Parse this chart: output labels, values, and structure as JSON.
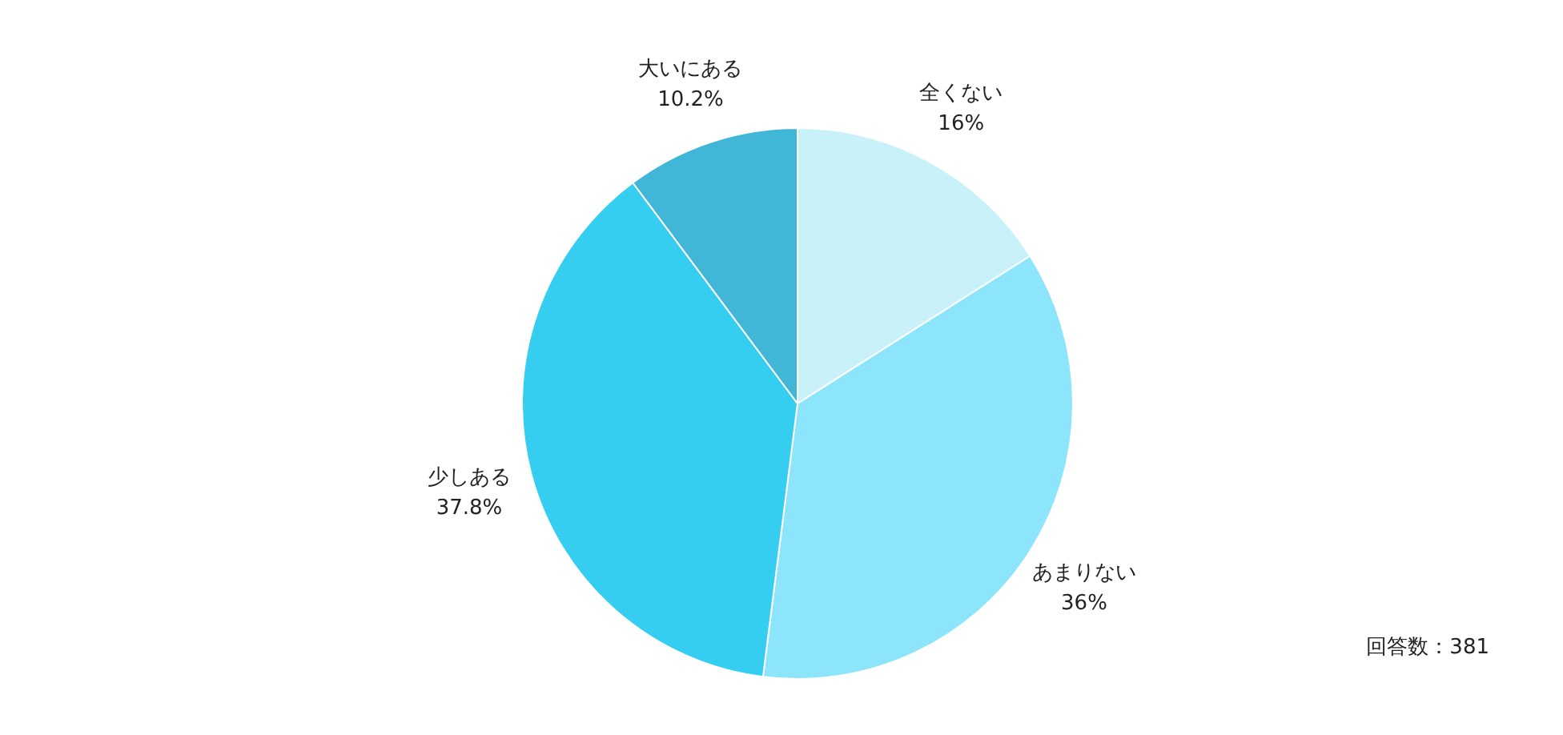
{
  "chart_data": {
    "type": "pie",
    "categories": [
      "全くない",
      "あまりない",
      "少しある",
      "大いにある"
    ],
    "values": [
      16,
      36,
      37.8,
      10.2
    ],
    "colors": [
      "#c8f1fa",
      "#8ce5fb",
      "#35cdf0",
      "#42b6d6"
    ],
    "value_labels": [
      "16%",
      "36%",
      "37.8%",
      "10.2%"
    ],
    "annotations": [
      "回答数：381"
    ]
  }
}
